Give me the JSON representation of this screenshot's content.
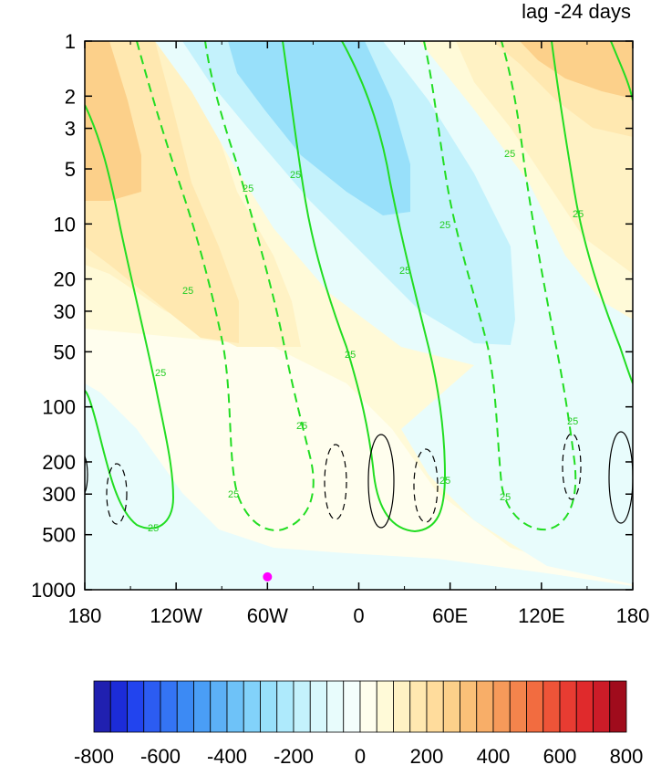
{
  "chart_data": {
    "type": "heatmap",
    "title_right": "lag -24 days",
    "x_axis": {
      "ticks": [
        -180,
        -120,
        -60,
        0,
        60,
        120,
        180
      ],
      "tick_labels": [
        "180",
        "120W",
        "60W",
        "0",
        "60E",
        "120E",
        "180"
      ],
      "range": [
        -180,
        180
      ]
    },
    "y_axis": {
      "scale": "log",
      "reversed": true,
      "ticks": [
        1,
        2,
        3,
        5,
        10,
        20,
        30,
        50,
        100,
        200,
        300,
        500,
        1000
      ],
      "tick_labels": [
        "1",
        "2",
        "3",
        "5",
        "10",
        "20",
        "30",
        "50",
        "100",
        "200",
        "300",
        "500",
        "1000"
      ],
      "range": [
        1,
        1000
      ]
    },
    "shading_levels": [
      -800,
      -750,
      -700,
      -650,
      -600,
      -550,
      -500,
      -450,
      -400,
      -350,
      -300,
      -250,
      -200,
      -150,
      -100,
      -50,
      0,
      50,
      100,
      150,
      200,
      250,
      300,
      350,
      400,
      450,
      500,
      550,
      600,
      650,
      700,
      750,
      800
    ],
    "colorbar": {
      "labels": [
        "-800",
        "-600",
        "-400",
        "-200",
        "0",
        "200",
        "400",
        "600",
        "800"
      ],
      "colors": [
        "#2020b0",
        "#1c2cd8",
        "#2244ee",
        "#2c5cf2",
        "#3474f4",
        "#3c8af4",
        "#4a9ef6",
        "#5cb0f6",
        "#6ec2f8",
        "#82d2fa",
        "#98e0fa",
        "#aeeafc",
        "#c4f2fc",
        "#d8f8fc",
        "#e8fcfc",
        "#f4fefc",
        "#fffeee",
        "#fffad8",
        "#fff2c4",
        "#ffe8b0",
        "#ffdc9c",
        "#fcd08a",
        "#fac078",
        "#f8ae68",
        "#f69a5a",
        "#f4844c",
        "#f26c40",
        "#ee5438",
        "#e83c32",
        "#e02a2c",
        "#cc1c28",
        "#a00c1c"
      ]
    },
    "contour_label": "25",
    "marker": {
      "lon": -60,
      "pressure": 850,
      "color": "#ff00ff"
    },
    "colors": {
      "green_contour": "#22dd22",
      "black_contour": "#000000"
    }
  }
}
